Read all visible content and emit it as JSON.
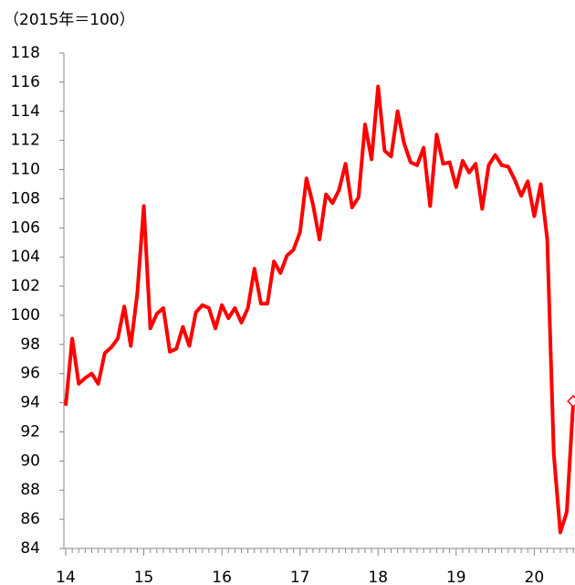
{
  "chart_data": {
    "type": "line",
    "title": "（2015年＝100）",
    "categories": [
      "14",
      null,
      null,
      null,
      null,
      null,
      null,
      null,
      null,
      null,
      null,
      null,
      "15",
      null,
      null,
      null,
      null,
      null,
      null,
      null,
      null,
      null,
      null,
      null,
      "16",
      null,
      null,
      null,
      null,
      null,
      null,
      null,
      null,
      null,
      null,
      null,
      "17",
      null,
      null,
      null,
      null,
      null,
      null,
      null,
      null,
      null,
      null,
      null,
      "18",
      null,
      null,
      null,
      null,
      null,
      null,
      null,
      null,
      null,
      null,
      null,
      "19",
      null,
      null,
      null,
      null,
      null,
      null,
      null,
      null,
      null,
      null,
      null,
      "20",
      null,
      null,
      null,
      null,
      null,
      null
    ],
    "values": [
      93.8,
      98.4,
      95.3,
      95.7,
      96.0,
      95.3,
      97.4,
      97.8,
      98.4,
      100.6,
      97.9,
      101.5,
      107.5,
      99.1,
      100.1,
      100.5,
      97.5,
      97.7,
      99.2,
      97.9,
      100.2,
      100.7,
      100.5,
      99.1,
      100.7,
      99.8,
      100.5,
      99.5,
      100.5,
      103.2,
      100.8,
      100.8,
      103.7,
      102.9,
      104.1,
      104.5,
      105.7,
      109.4,
      107.6,
      105.2,
      108.3,
      107.7,
      108.6,
      110.4,
      107.4,
      108.1,
      113.1,
      110.7,
      115.7,
      111.3,
      110.9,
      114.0,
      111.8,
      110.5,
      110.3,
      111.5,
      107.5,
      112.4,
      110.4,
      110.5,
      108.8,
      110.6,
      109.8,
      110.4,
      107.3,
      110.3,
      111.0,
      110.3,
      110.2,
      109.3,
      108.2,
      109.2,
      106.8,
      109.0,
      105.2,
      90.5,
      85.1,
      86.5,
      94.1
    ],
    "color": "#ff0000",
    "ylim": [
      84,
      118
    ],
    "yticks": [
      84,
      86,
      88,
      90,
      92,
      94,
      96,
      98,
      100,
      102,
      104,
      106,
      108,
      110,
      112,
      114,
      116,
      118
    ]
  }
}
